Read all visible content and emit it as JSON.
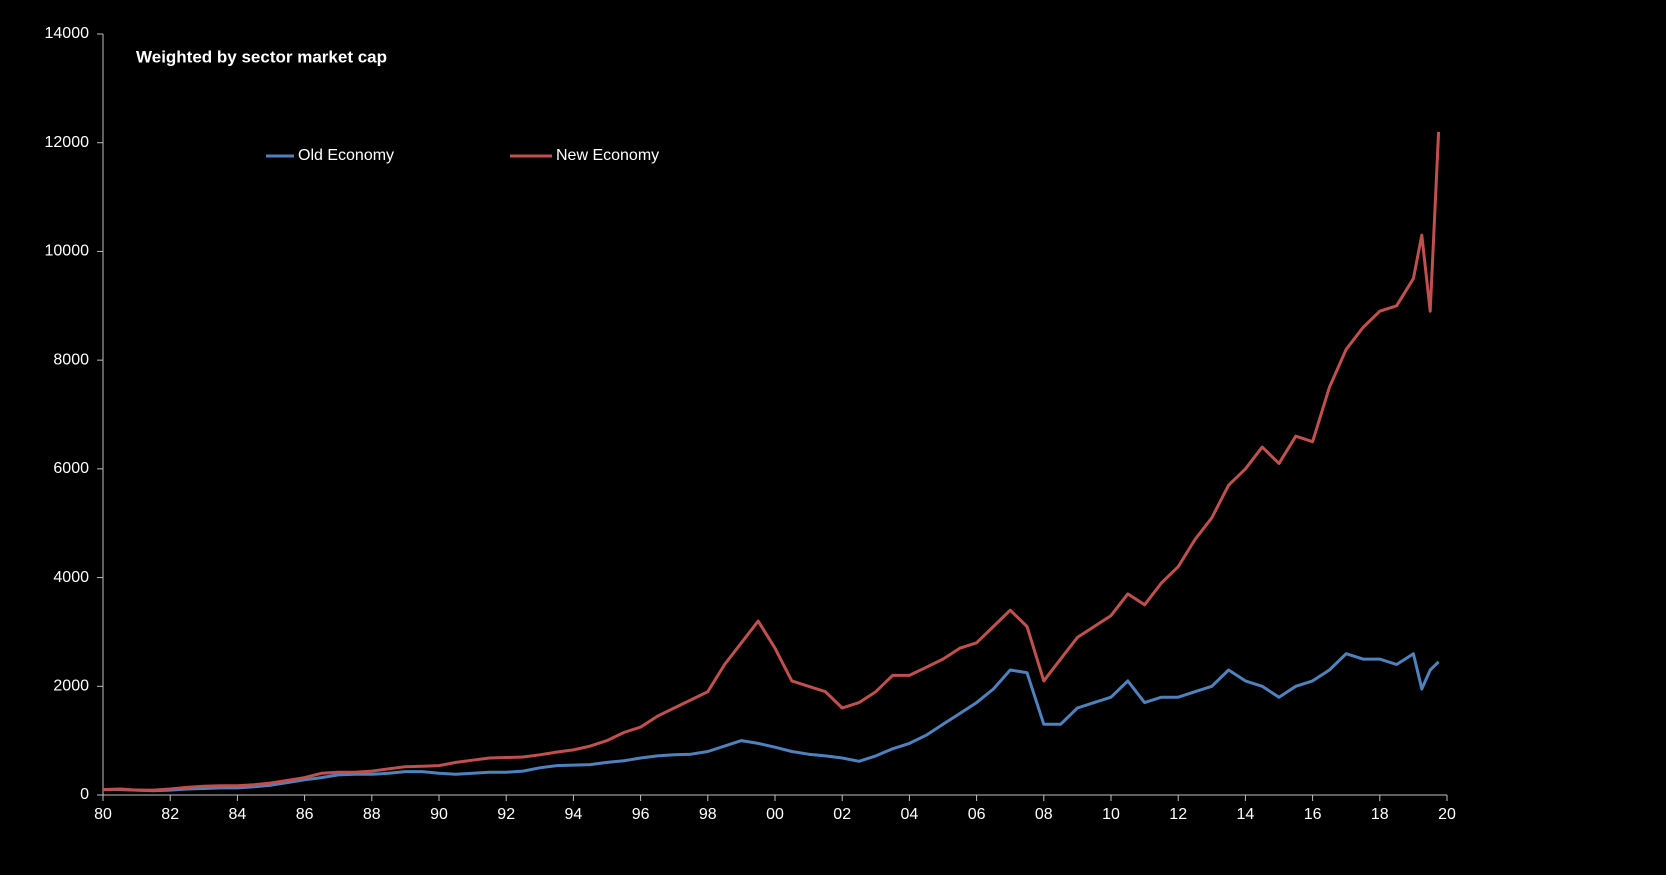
{
  "chart_data": {
    "type": "line",
    "title": "Weighted by sector market cap",
    "x": [
      1980,
      1980.5,
      1981,
      1981.5,
      1982,
      1982.5,
      1983,
      1983.5,
      1984,
      1984.5,
      1985,
      1985.5,
      1986,
      1986.5,
      1987,
      1987.5,
      1988,
      1988.5,
      1989,
      1989.5,
      1990,
      1990.5,
      1991,
      1991.5,
      1992,
      1992.5,
      1993,
      1993.5,
      1994,
      1994.5,
      1995,
      1995.5,
      1996,
      1996.5,
      1997,
      1997.5,
      1998,
      1998.5,
      1999,
      1999.5,
      2000,
      2000.5,
      2001,
      2001.5,
      2002,
      2002.5,
      2003,
      2003.5,
      2004,
      2004.5,
      2005,
      2005.5,
      2006,
      2006.5,
      2007,
      2007.5,
      2008,
      2008.5,
      2009,
      2009.5,
      2010,
      2010.5,
      2011,
      2011.5,
      2012,
      2012.5,
      2013,
      2013.5,
      2014,
      2014.5,
      2015,
      2015.5,
      2016,
      2016.5,
      2017,
      2017.5,
      2018,
      2018.5,
      2019,
      2019.25,
      2019.5,
      2019.75
    ],
    "series": [
      {
        "name": "Old Economy",
        "color": "#4f81bd",
        "values": [
          100,
          100,
          90,
          80,
          90,
          110,
          120,
          130,
          130,
          150,
          180,
          230,
          280,
          320,
          370,
          380,
          380,
          400,
          430,
          430,
          400,
          380,
          400,
          420,
          420,
          440,
          500,
          540,
          550,
          560,
          600,
          630,
          680,
          720,
          740,
          750,
          800,
          900,
          1000,
          950,
          880,
          800,
          750,
          720,
          680,
          620,
          720,
          850,
          950,
          1100,
          1300,
          1500,
          1700,
          1950,
          2300,
          2250,
          1300,
          1300,
          1600,
          1700,
          1800,
          2100,
          1700,
          1800,
          1800,
          1900,
          2000,
          2300,
          2100,
          2000,
          1800,
          2000,
          2100,
          2300,
          2600,
          2500,
          2500,
          2400,
          2600,
          1950,
          2300,
          2450
        ]
      },
      {
        "name": "New Economy",
        "color": "#c0504d",
        "values": [
          100,
          110,
          90,
          90,
          110,
          140,
          160,
          170,
          170,
          190,
          220,
          270,
          320,
          400,
          420,
          420,
          440,
          480,
          520,
          530,
          540,
          600,
          640,
          680,
          690,
          700,
          740,
          790,
          830,
          900,
          1000,
          1150,
          1250,
          1450,
          1600,
          1750,
          1900,
          2400,
          2800,
          3200,
          2700,
          2100,
          2000,
          1900,
          1600,
          1700,
          1900,
          2200,
          2200,
          2350,
          2500,
          2700,
          2800,
          3100,
          3400,
          3100,
          2100,
          2500,
          2900,
          3100,
          3300,
          3700,
          3500,
          3900,
          4200,
          4700,
          5100,
          5700,
          6000,
          6400,
          6100,
          6600,
          6500,
          7500,
          8200,
          8600,
          8900,
          9000,
          9500,
          10300,
          8900,
          12200
        ]
      }
    ],
    "xlim": [
      1980,
      2020
    ],
    "xticks": [
      {
        "value": 1980,
        "label": "80"
      },
      {
        "value": 1982,
        "label": "82"
      },
      {
        "value": 1984,
        "label": "84"
      },
      {
        "value": 1986,
        "label": "86"
      },
      {
        "value": 1988,
        "label": "88"
      },
      {
        "value": 1990,
        "label": "90"
      },
      {
        "value": 1992,
        "label": "92"
      },
      {
        "value": 1994,
        "label": "94"
      },
      {
        "value": 1996,
        "label": "96"
      },
      {
        "value": 1998,
        "label": "98"
      },
      {
        "value": 2000,
        "label": "00"
      },
      {
        "value": 2002,
        "label": "02"
      },
      {
        "value": 2004,
        "label": "04"
      },
      {
        "value": 2006,
        "label": "06"
      },
      {
        "value": 2008,
        "label": "08"
      },
      {
        "value": 2010,
        "label": "10"
      },
      {
        "value": 2012,
        "label": "12"
      },
      {
        "value": 2014,
        "label": "14"
      },
      {
        "value": 2016,
        "label": "16"
      },
      {
        "value": 2018,
        "label": "18"
      },
      {
        "value": 2020,
        "label": "20"
      }
    ],
    "ylim": [
      0,
      14000
    ],
    "yticks": [
      0,
      2000,
      4000,
      6000,
      8000,
      10000,
      12000,
      14000
    ],
    "grid": false
  }
}
